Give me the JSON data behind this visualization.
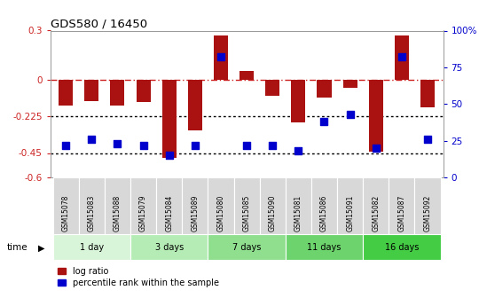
{
  "title": "GDS580 / 16450",
  "samples": [
    "GSM15078",
    "GSM15083",
    "GSM15088",
    "GSM15079",
    "GSM15084",
    "GSM15089",
    "GSM15080",
    "GSM15085",
    "GSM15090",
    "GSM15081",
    "GSM15086",
    "GSM15091",
    "GSM15082",
    "GSM15087",
    "GSM15092"
  ],
  "log_ratio": [
    -0.16,
    -0.13,
    -0.16,
    -0.14,
    -0.48,
    -0.31,
    0.27,
    0.05,
    -0.1,
    -0.26,
    -0.11,
    -0.05,
    -0.44,
    0.27,
    -0.17
  ],
  "percentile_rank": [
    22,
    26,
    23,
    22,
    15,
    22,
    82,
    22,
    22,
    18,
    38,
    43,
    20,
    82,
    26
  ],
  "groups": [
    {
      "label": "1 day",
      "count": 3,
      "color": "#d9f5d9"
    },
    {
      "label": "3 days",
      "count": 3,
      "color": "#b5ecb5"
    },
    {
      "label": "7 days",
      "count": 3,
      "color": "#8fdf8f"
    },
    {
      "label": "11 days",
      "count": 3,
      "color": "#6dd46d"
    },
    {
      "label": "16 days",
      "count": 3,
      "color": "#44cc44"
    }
  ],
  "ylim_left": [
    -0.6,
    0.3
  ],
  "ylim_right": [
    0,
    100
  ],
  "yticks_left": [
    0.3,
    0.0,
    -0.225,
    -0.45,
    -0.6
  ],
  "ytick_labels_left": [
    "0.3",
    "0",
    "-0.225",
    "-0.45",
    "-0.6"
  ],
  "yticks_right": [
    100,
    75,
    50,
    25,
    0
  ],
  "ytick_labels_right": [
    "100%",
    "75",
    "50",
    "25",
    "0"
  ],
  "hlines": [
    {
      "y": 0.0,
      "color": "#cc2222",
      "style": "dashdot",
      "lw": 1.0
    },
    {
      "y": -0.225,
      "color": "#000000",
      "style": "dotted",
      "lw": 1.0
    },
    {
      "y": -0.45,
      "color": "#000000",
      "style": "dotted",
      "lw": 1.0
    }
  ],
  "bar_color": "#aa1111",
  "dot_color": "#0000cc",
  "sample_box_color": "#d8d8d8",
  "sample_box_edge": "#ffffff",
  "time_label": "time",
  "legend_items": [
    "log ratio",
    "percentile rank within the sample"
  ],
  "figsize": [
    5.4,
    3.45
  ],
  "dpi": 100
}
